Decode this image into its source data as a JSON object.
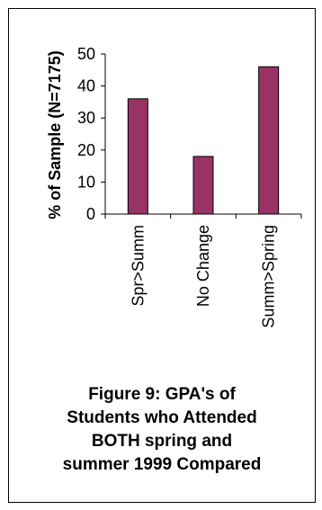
{
  "chart_data": {
    "type": "bar",
    "categories": [
      "Spr>Summ",
      "No Change",
      "Summ>Spring"
    ],
    "values": [
      36,
      18,
      46
    ],
    "ylabel": "% of Sample (N=7175)",
    "xlabel": "",
    "ylim": [
      0,
      50
    ],
    "yticks": [
      0,
      10,
      20,
      30,
      40,
      50
    ],
    "grid": false,
    "bar_color": "#993366",
    "caption_lines": [
      "Figure 9: GPA's of",
      "Students who Attended",
      "BOTH spring and",
      "summer 1999 Compared"
    ]
  }
}
